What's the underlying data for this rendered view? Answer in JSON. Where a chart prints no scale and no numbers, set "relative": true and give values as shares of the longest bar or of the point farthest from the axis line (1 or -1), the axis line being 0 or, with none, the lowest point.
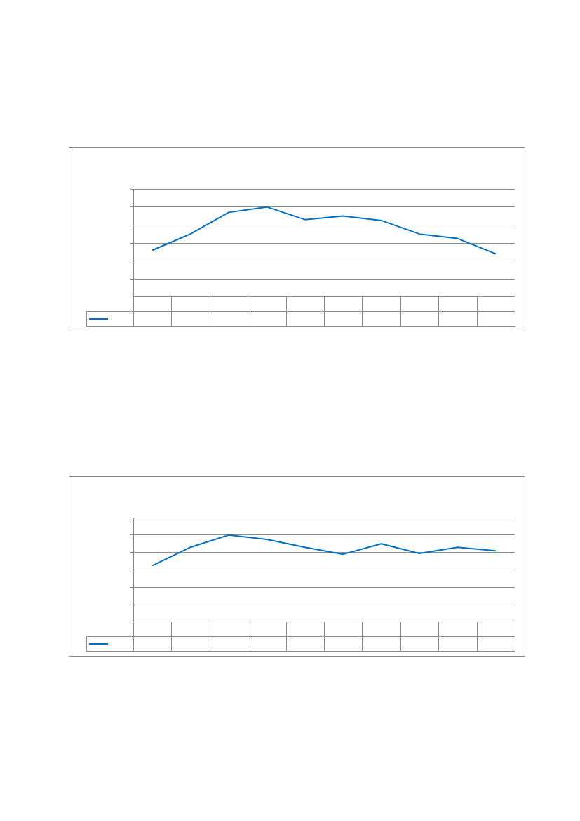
{
  "chart_data": [
    {
      "type": "line",
      "relative": true,
      "grid": "y",
      "marker": "none",
      "categories": [
        null,
        null,
        null,
        null,
        null,
        null,
        null,
        null,
        null,
        null
      ],
      "series": [
        {
          "color": "#0070c0",
          "values": [
            0.52,
            0.7,
            0.94,
            1,
            0.86,
            0.9,
            0.85,
            0.7,
            0.65,
            0.48
          ]
        }
      ]
    },
    {
      "type": "line",
      "relative": true,
      "grid": "y",
      "marker": "none",
      "categories": [
        null,
        null,
        null,
        null,
        null,
        null,
        null,
        null,
        null,
        null
      ],
      "series": [
        {
          "color": "#0070c0",
          "values": [
            0.65,
            0.86,
            1,
            0.95,
            0.86,
            0.78,
            0.9,
            0.79,
            0.86,
            0.82
          ]
        }
      ]
    }
  ]
}
